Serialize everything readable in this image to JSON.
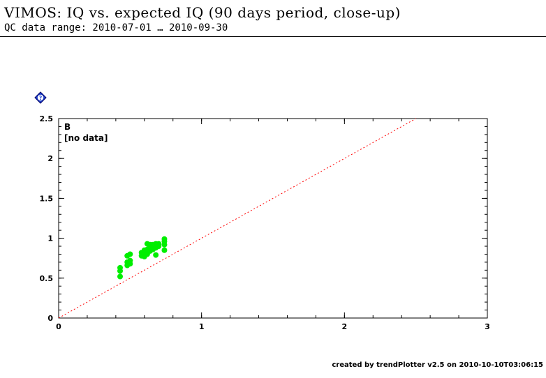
{
  "header": {
    "title": "VIMOS: IQ vs. expected IQ (90 days period, close-up)",
    "subtitle": "QC data range: 2010-07-01 … 2010-09-30"
  },
  "help_icon": {
    "name": "help-icon",
    "label": "?"
  },
  "footer": {
    "text": "created by trendPlotter v2.5 on 2010-10-10T03:06:15"
  },
  "chart_data": {
    "type": "scatter",
    "title": "",
    "xlabel": "",
    "ylabel": "",
    "xlim": [
      0,
      3
    ],
    "ylim": [
      0,
      2.5
    ],
    "x_ticks": [
      0,
      1,
      2,
      3
    ],
    "y_ticks": [
      0,
      0.5,
      1,
      1.5,
      2,
      2.5
    ],
    "x_tick_labels": [
      "0",
      "1",
      "2",
      "3"
    ],
    "y_tick_labels": [
      "0",
      "0.5",
      "1",
      "1.5",
      "2",
      "2.5"
    ],
    "grid": false,
    "annotations": [
      "B",
      "[no data]"
    ],
    "reference_line": {
      "type": "identity",
      "x": [
        0,
        2.5
      ],
      "y": [
        0,
        2.5
      ],
      "color": "#ff0000",
      "style": "dotted"
    },
    "series": [
      {
        "color": "#00ee00",
        "points": [
          [
            0.43,
            0.52
          ],
          [
            0.43,
            0.59
          ],
          [
            0.43,
            0.63
          ],
          [
            0.48,
            0.66
          ],
          [
            0.48,
            0.7
          ],
          [
            0.48,
            0.78
          ],
          [
            0.5,
            0.68
          ],
          [
            0.5,
            0.72
          ],
          [
            0.5,
            0.8
          ],
          [
            0.58,
            0.78
          ],
          [
            0.58,
            0.82
          ],
          [
            0.6,
            0.77
          ],
          [
            0.6,
            0.8
          ],
          [
            0.6,
            0.85
          ],
          [
            0.62,
            0.8
          ],
          [
            0.62,
            0.86
          ],
          [
            0.62,
            0.93
          ],
          [
            0.64,
            0.84
          ],
          [
            0.64,
            0.89
          ],
          [
            0.64,
            0.92
          ],
          [
            0.66,
            0.86
          ],
          [
            0.66,
            0.92
          ],
          [
            0.68,
            0.79
          ],
          [
            0.68,
            0.88
          ],
          [
            0.68,
            0.93
          ],
          [
            0.7,
            0.9
          ],
          [
            0.7,
            0.93
          ],
          [
            0.74,
            0.85
          ],
          [
            0.74,
            0.92
          ],
          [
            0.74,
            0.96
          ],
          [
            0.74,
            0.99
          ]
        ]
      }
    ]
  }
}
